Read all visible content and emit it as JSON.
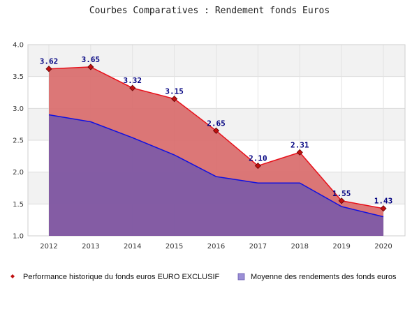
{
  "chart_data": {
    "type": "area",
    "title": "Courbes Comparatives : Rendement fonds Euros",
    "xlabel": "",
    "ylabel": "",
    "categories": [
      "2012",
      "2013",
      "2014",
      "2015",
      "2016",
      "2017",
      "2018",
      "2019",
      "2020"
    ],
    "ylim": [
      1.0,
      4.0
    ],
    "yticks": [
      "1.0",
      "1.5",
      "2.0",
      "2.5",
      "3.0",
      "3.5",
      "4.0"
    ],
    "grid": "horizontal",
    "legend_position": "bottom",
    "series": [
      {
        "name": "Performance historique du fonds euros EURO EXCLUSIF",
        "values": [
          3.62,
          3.65,
          3.32,
          3.15,
          2.65,
          2.1,
          2.31,
          1.55,
          1.43
        ],
        "labels": [
          "3.62",
          "3.65",
          "3.32",
          "3.15",
          "2.65",
          "2.10",
          "2.31",
          "1.55",
          "1.43"
        ],
        "line_color": "#e8101a",
        "fill_color": "#d96b6b",
        "marker_color": "#c01010"
      },
      {
        "name": "Moyenne des rendements des fonds euros",
        "values": [
          2.9,
          2.79,
          2.54,
          2.27,
          1.93,
          1.83,
          1.83,
          1.46,
          1.3
        ],
        "line_color": "#1010e0",
        "fill_color": "#7c5aa8"
      }
    ]
  }
}
